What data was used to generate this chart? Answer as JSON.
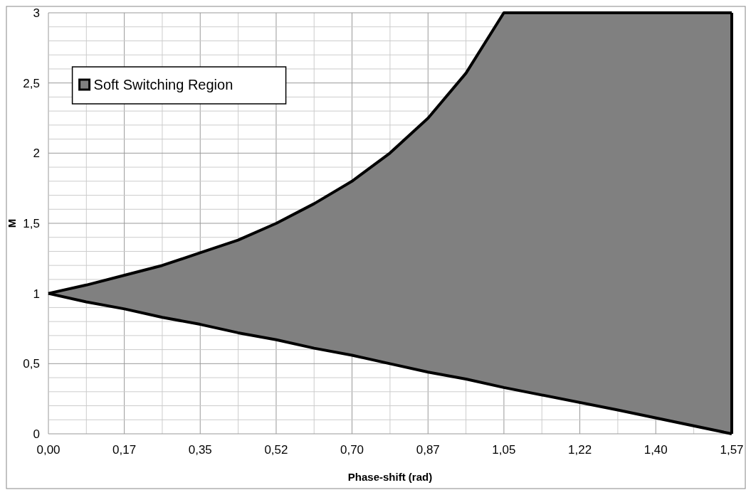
{
  "chart_data": {
    "type": "area",
    "xlabel": "Phase-shift (rad)",
    "ylabel": "M",
    "xlim": [
      0,
      1.571
    ],
    "ylim": [
      0,
      3
    ],
    "xticks": [
      {
        "value": 0,
        "label": "0,00"
      },
      {
        "value": 0.1745,
        "label": "0,17"
      },
      {
        "value": 0.349,
        "label": "0,35"
      },
      {
        "value": 0.5236,
        "label": "0,52"
      },
      {
        "value": 0.698,
        "label": "0,70"
      },
      {
        "value": 0.8727,
        "label": "0,87"
      },
      {
        "value": 1.0472,
        "label": "1,05"
      },
      {
        "value": 1.2217,
        "label": "1,22"
      },
      {
        "value": 1.3963,
        "label": "1,40"
      },
      {
        "value": 1.571,
        "label": "1,57"
      }
    ],
    "yticks": [
      0,
      {
        "value": 0.5,
        "label": "0,5"
      },
      1,
      {
        "value": 1.5,
        "label": "1,5"
      },
      2,
      {
        "value": 2.5,
        "label": "2,5"
      },
      3
    ],
    "x": [
      0,
      0.087,
      0.175,
      0.262,
      0.349,
      0.436,
      0.524,
      0.611,
      0.698,
      0.785,
      0.873,
      0.96,
      1.047,
      1.309,
      1.571
    ],
    "series": [
      {
        "type": "line",
        "color": "#000000",
        "values": [
          1,
          0.94,
          0.89,
          0.83,
          0.78,
          0.72,
          0.67,
          0.61,
          0.56,
          0.5,
          0.44,
          0.39,
          0.33,
          0.17,
          0
        ]
      },
      {
        "name": "Soft Switching Region",
        "color": "#808080",
        "values": [
          1,
          1.06,
          1.13,
          1.2,
          1.29,
          1.38,
          1.5,
          1.64,
          1.8,
          2,
          2.25,
          2.57,
          3,
          3,
          3
        ]
      }
    ],
    "grid": true,
    "legend": "top left"
  }
}
